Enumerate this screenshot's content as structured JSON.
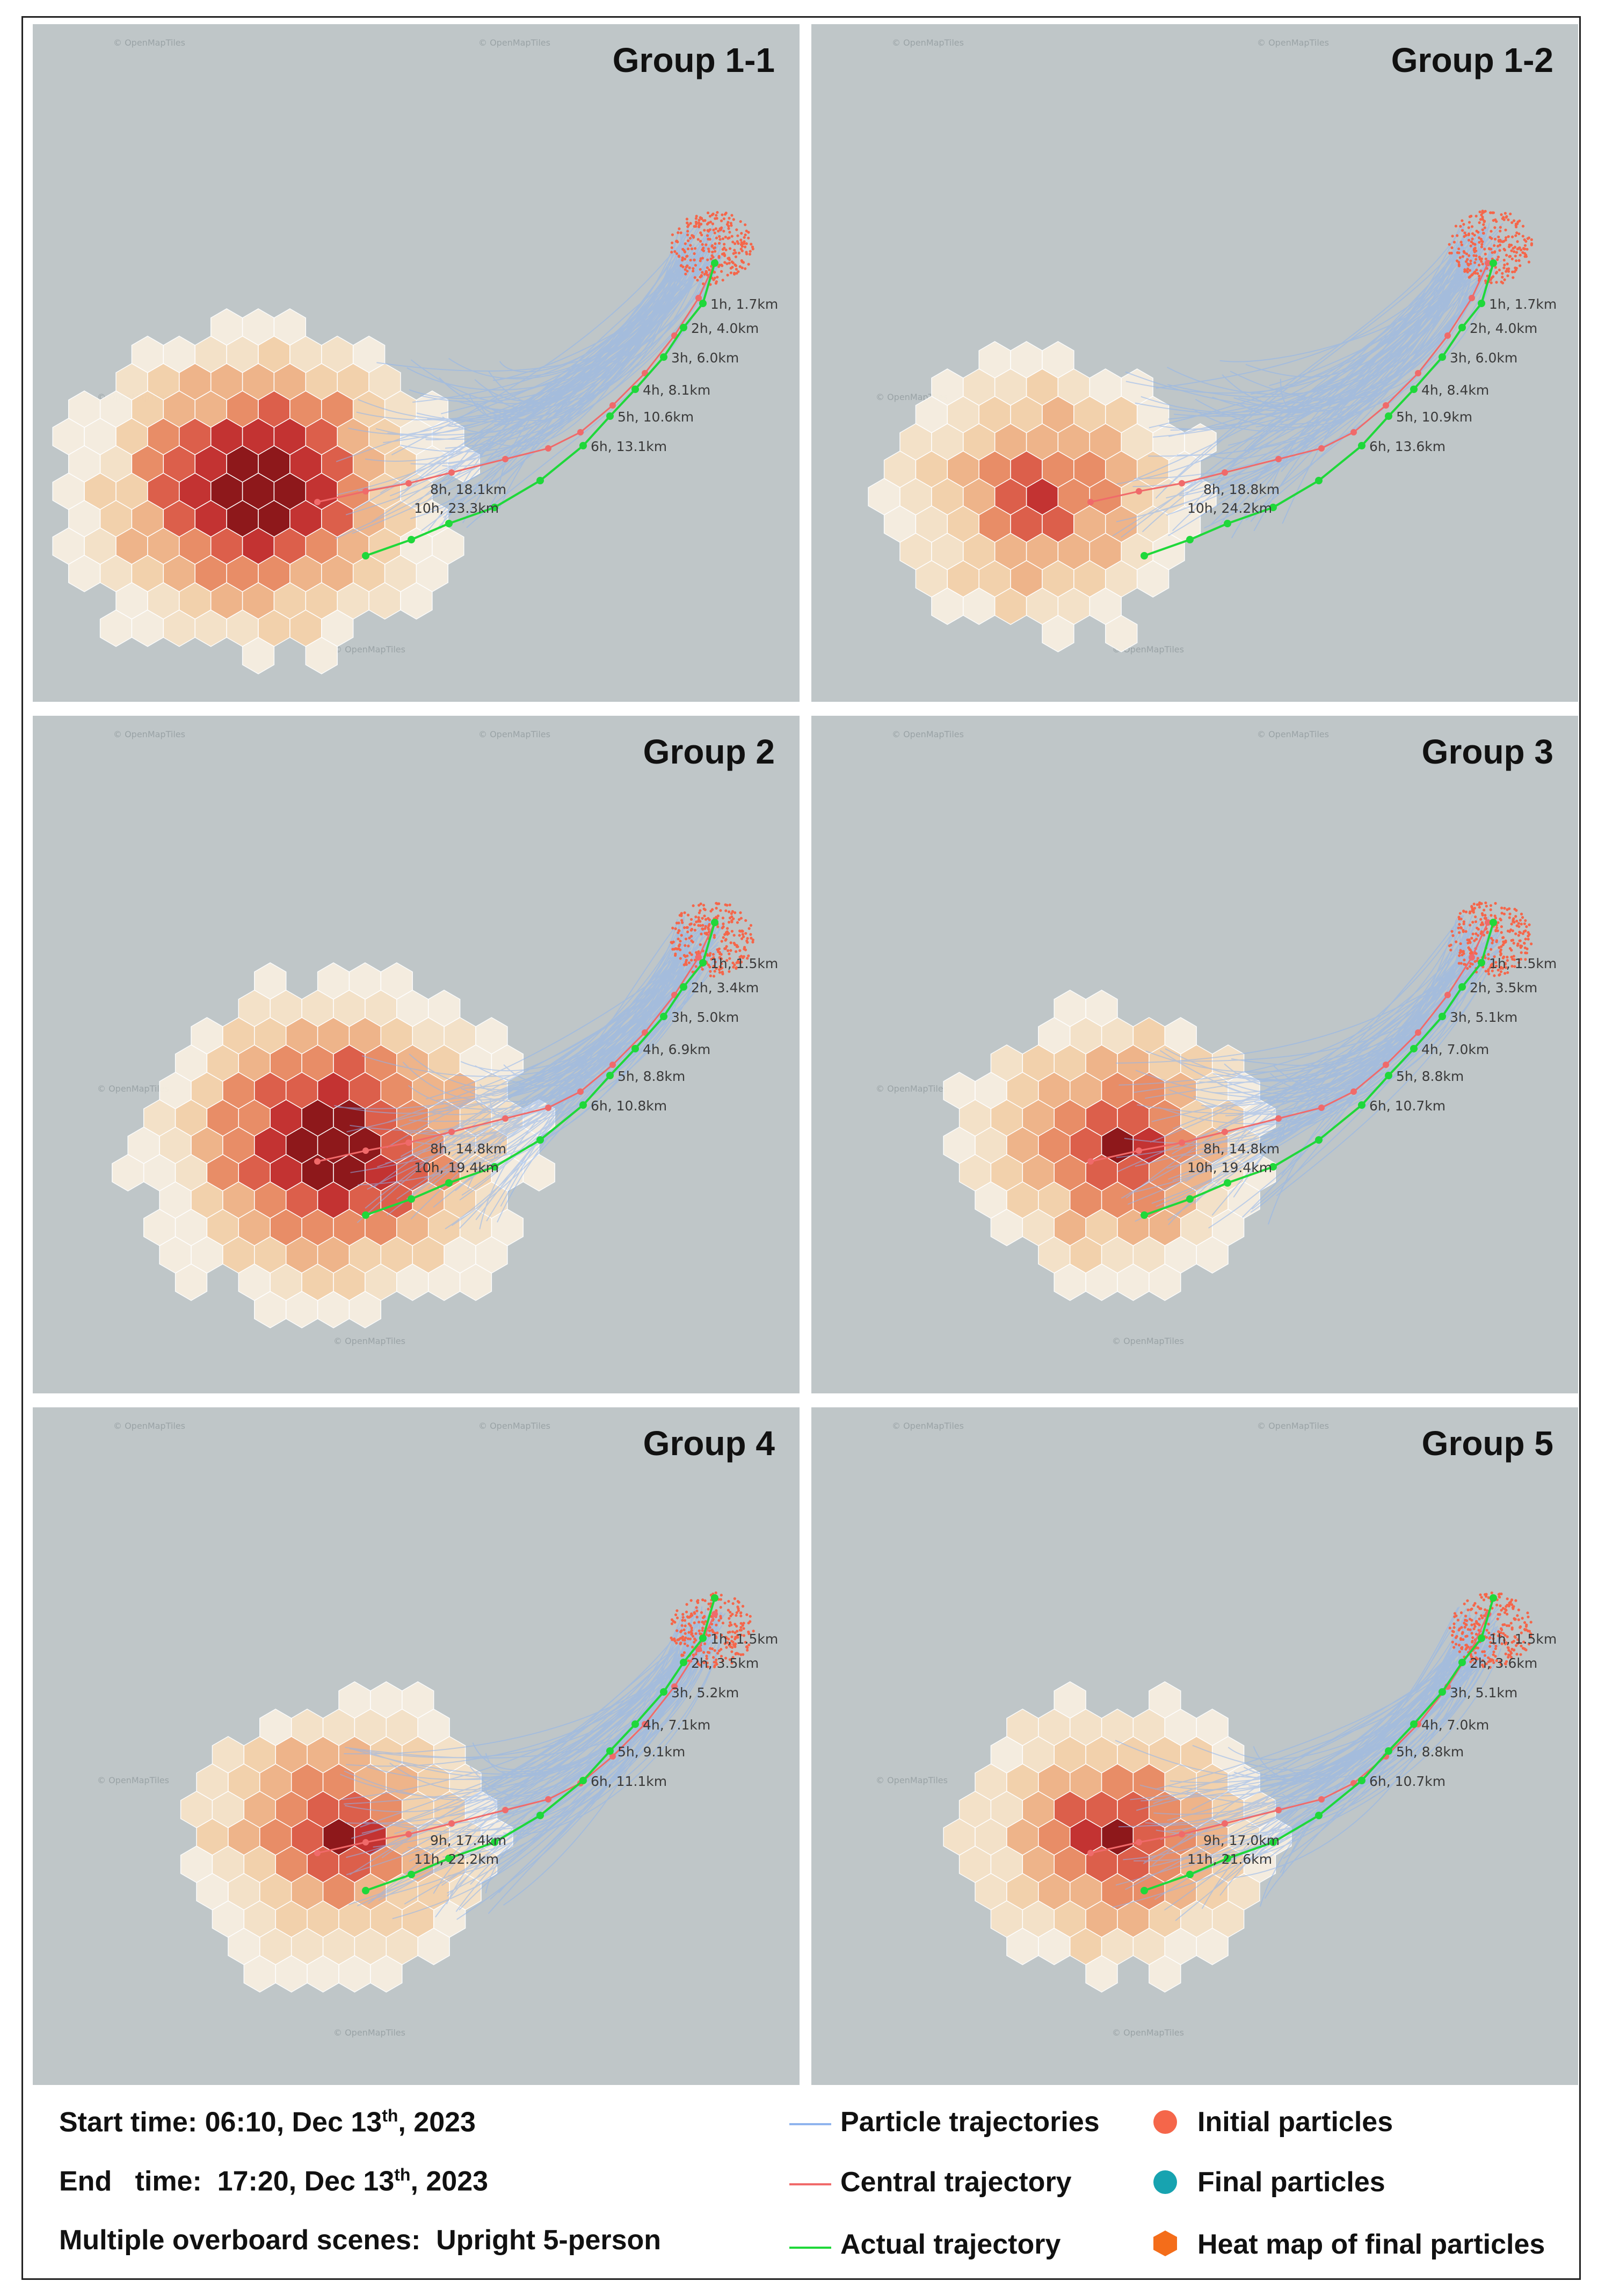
{
  "panels": [
    {
      "title": "Group 1-1",
      "attribution": "© OpenMapTiles",
      "actual_labels": [
        "1h, 1.7km",
        "2h, 4.0km",
        "3h, 6.0km",
        "4h, 8.1km",
        "5h, 10.6km",
        "6h, 13.1km"
      ],
      "central_labels": [
        "8h, 18.1km",
        "10h, 23.3km"
      ],
      "heat": "wide"
    },
    {
      "title": "Group 1-2",
      "attribution": "© OpenMapTiles",
      "actual_labels": [
        "1h, 1.7km",
        "2h, 4.0km",
        "3h, 6.0km",
        "4h, 8.4km",
        "5h, 10.9km",
        "6h, 13.6km"
      ],
      "central_labels": [
        "8h, 18.8km",
        "10h, 24.2km"
      ],
      "heat": "compact"
    },
    {
      "title": "Group 2",
      "attribution": "© OpenMapTiles",
      "actual_labels": [
        "1h, 1.5km",
        "2h, 3.4km",
        "3h, 5.0km",
        "4h, 6.9km",
        "5h, 8.8km",
        "6h, 10.8km"
      ],
      "central_labels": [
        "8h, 14.8km",
        "10h, 19.4km"
      ],
      "heat": "tall"
    },
    {
      "title": "Group 3",
      "attribution": "© OpenMapTiles",
      "actual_labels": [
        "1h, 1.5km",
        "2h, 3.5km",
        "3h, 5.1km",
        "4h, 7.0km",
        "5h, 8.8km",
        "6h, 10.7km"
      ],
      "central_labels": [
        "8h, 14.8km",
        "10h, 19.4km"
      ],
      "heat": "medium"
    },
    {
      "title": "Group 4",
      "attribution": "© OpenMapTiles",
      "actual_labels": [
        "1h, 1.5km",
        "2h, 3.5km",
        "3h, 5.2km",
        "4h, 7.1km",
        "5h, 9.1km",
        "6h, 11.1km"
      ],
      "central_labels": [
        "9h, 17.4km",
        "11h, 22.2km"
      ],
      "heat": "medium"
    },
    {
      "title": "Group 5",
      "attribution": "© OpenMapTiles",
      "actual_labels": [
        "1h, 1.5km",
        "2h, 3.6km",
        "3h, 5.1km",
        "4h, 7.0km",
        "5h, 8.8km",
        "6h, 10.7km"
      ],
      "central_labels": [
        "9h, 17.0km",
        "11h, 21.6km"
      ],
      "heat": "medium"
    }
  ],
  "info": {
    "start_prefix": "Start time:  06:10, Dec 13",
    "start_sup": "th",
    "start_suffix": ", 2023",
    "end_prefix": "End   time:  17:20, Dec 13",
    "end_sup": "th",
    "end_suffix": ", 2023",
    "scene": "Multiple overboard scenes:  Upright 5-person"
  },
  "legend": {
    "particle": "Particle trajectories",
    "central": "Central trajectory",
    "actual": "Actual trajectory",
    "initial": "Initial particles",
    "final": "Final particles",
    "heatmap": "Heat map of final particles"
  },
  "colors": {
    "map_bg": "#bfc6c8",
    "particle": "#8fb4ee",
    "central": "#f06a6a",
    "actual": "#1fd83a",
    "initial": "#f5664a",
    "final": "#17a3b0",
    "heatmap": "#f46d1a"
  }
}
